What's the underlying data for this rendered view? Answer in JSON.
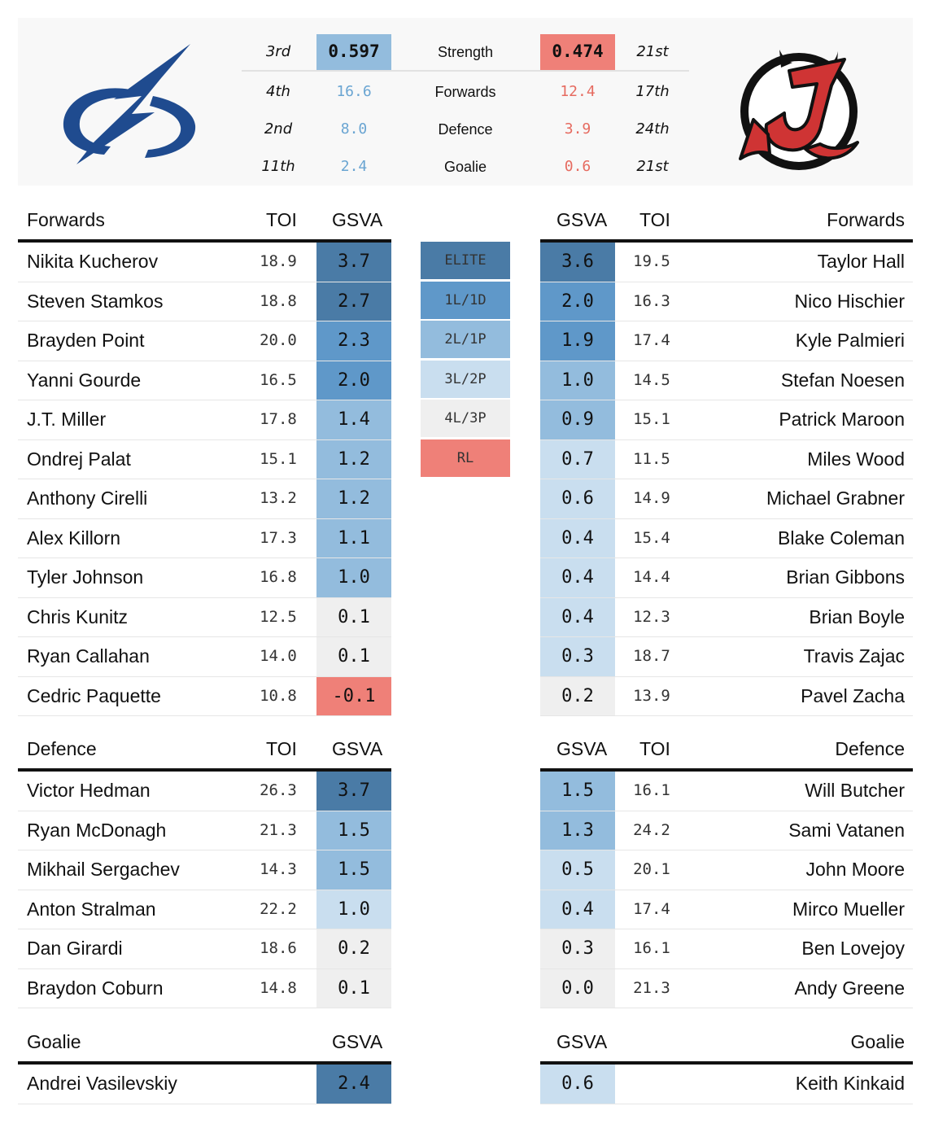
{
  "colors": {
    "elite": "#4a7ba6",
    "tier1": "#5f98c9",
    "tier2": "#93bcdd",
    "tier3": "#c9deef",
    "tier4": "#efefef",
    "rl": "#ef8078",
    "strength_left_bg": "#93bcdd",
    "strength_right_bg": "#ef8078"
  },
  "logos": {
    "left": "tampa-bay-lightning-logo",
    "right": "new-jersey-devils-logo"
  },
  "summary": [
    {
      "label": "Strength",
      "left_rank": "3rd",
      "left_value": "0.597",
      "right_value": "0.474",
      "right_rank": "21st"
    },
    {
      "label": "Forwards",
      "left_rank": "4th",
      "left_value": "16.6",
      "right_value": "12.4",
      "right_rank": "17th"
    },
    {
      "label": "Defence",
      "left_rank": "2nd",
      "left_value": "8.0",
      "right_value": "3.9",
      "right_rank": "24th"
    },
    {
      "label": "Goalie",
      "left_rank": "11th",
      "left_value": "2.4",
      "right_value": "0.6",
      "right_rank": "21st"
    }
  ],
  "legend": [
    {
      "label": "ELITE",
      "tier": "elite"
    },
    {
      "label": "1L/1D",
      "tier": "tier1"
    },
    {
      "label": "2L/1P",
      "tier": "tier2"
    },
    {
      "label": "3L/2P",
      "tier": "tier3"
    },
    {
      "label": "4L/3P",
      "tier": "tier4"
    },
    {
      "label": "RL",
      "tier": "rl"
    }
  ],
  "headers": {
    "forwards": "Forwards",
    "defence": "Defence",
    "goalie": "Goalie",
    "toi": "TOI",
    "gsva": "GSVA"
  },
  "left_team": {
    "forwards": [
      {
        "name": "Nikita Kucherov",
        "toi": "18.9",
        "gsva": "3.7",
        "tier": "elite"
      },
      {
        "name": "Steven Stamkos",
        "toi": "18.8",
        "gsva": "2.7",
        "tier": "elite"
      },
      {
        "name": "Brayden Point",
        "toi": "20.0",
        "gsva": "2.3",
        "tier": "tier1"
      },
      {
        "name": "Yanni Gourde",
        "toi": "16.5",
        "gsva": "2.0",
        "tier": "tier1"
      },
      {
        "name": "J.T. Miller",
        "toi": "17.8",
        "gsva": "1.4",
        "tier": "tier2"
      },
      {
        "name": "Ondrej Palat",
        "toi": "15.1",
        "gsva": "1.2",
        "tier": "tier2"
      },
      {
        "name": "Anthony Cirelli",
        "toi": "13.2",
        "gsva": "1.2",
        "tier": "tier2"
      },
      {
        "name": "Alex Killorn",
        "toi": "17.3",
        "gsva": "1.1",
        "tier": "tier2"
      },
      {
        "name": "Tyler Johnson",
        "toi": "16.8",
        "gsva": "1.0",
        "tier": "tier2"
      },
      {
        "name": "Chris Kunitz",
        "toi": "12.5",
        "gsva": "0.1",
        "tier": "tier4"
      },
      {
        "name": "Ryan Callahan",
        "toi": "14.0",
        "gsva": "0.1",
        "tier": "tier4"
      },
      {
        "name": "Cedric Paquette",
        "toi": "10.8",
        "gsva": "-0.1",
        "tier": "rl"
      }
    ],
    "defence": [
      {
        "name": "Victor Hedman",
        "toi": "26.3",
        "gsva": "3.7",
        "tier": "elite"
      },
      {
        "name": "Ryan McDonagh",
        "toi": "21.3",
        "gsva": "1.5",
        "tier": "tier2"
      },
      {
        "name": "Mikhail Sergachev",
        "toi": "14.3",
        "gsva": "1.5",
        "tier": "tier2"
      },
      {
        "name": "Anton Stralman",
        "toi": "22.2",
        "gsva": "1.0",
        "tier": "tier3"
      },
      {
        "name": "Dan Girardi",
        "toi": "18.6",
        "gsva": "0.2",
        "tier": "tier4"
      },
      {
        "name": "Braydon Coburn",
        "toi": "14.8",
        "gsva": "0.1",
        "tier": "tier4"
      }
    ],
    "goalie": [
      {
        "name": "Andrei Vasilevskiy",
        "toi": "",
        "gsva": "2.4",
        "tier": "elite"
      }
    ]
  },
  "right_team": {
    "forwards": [
      {
        "name": "Taylor Hall",
        "toi": "19.5",
        "gsva": "3.6",
        "tier": "elite"
      },
      {
        "name": "Nico Hischier",
        "toi": "16.3",
        "gsva": "2.0",
        "tier": "tier1"
      },
      {
        "name": "Kyle Palmieri",
        "toi": "17.4",
        "gsva": "1.9",
        "tier": "tier1"
      },
      {
        "name": "Stefan Noesen",
        "toi": "14.5",
        "gsva": "1.0",
        "tier": "tier2"
      },
      {
        "name": "Patrick Maroon",
        "toi": "15.1",
        "gsva": "0.9",
        "tier": "tier2"
      },
      {
        "name": "Miles Wood",
        "toi": "11.5",
        "gsva": "0.7",
        "tier": "tier3"
      },
      {
        "name": "Michael Grabner",
        "toi": "14.9",
        "gsva": "0.6",
        "tier": "tier3"
      },
      {
        "name": "Blake Coleman",
        "toi": "15.4",
        "gsva": "0.4",
        "tier": "tier3"
      },
      {
        "name": "Brian Gibbons",
        "toi": "14.4",
        "gsva": "0.4",
        "tier": "tier3"
      },
      {
        "name": "Brian Boyle",
        "toi": "12.3",
        "gsva": "0.4",
        "tier": "tier3"
      },
      {
        "name": "Travis Zajac",
        "toi": "18.7",
        "gsva": "0.3",
        "tier": "tier3"
      },
      {
        "name": "Pavel Zacha",
        "toi": "13.9",
        "gsva": "0.2",
        "tier": "tier4"
      }
    ],
    "defence": [
      {
        "name": "Will Butcher",
        "toi": "16.1",
        "gsva": "1.5",
        "tier": "tier2"
      },
      {
        "name": "Sami Vatanen",
        "toi": "24.2",
        "gsva": "1.3",
        "tier": "tier2"
      },
      {
        "name": "John Moore",
        "toi": "20.1",
        "gsva": "0.5",
        "tier": "tier3"
      },
      {
        "name": "Mirco Mueller",
        "toi": "17.4",
        "gsva": "0.4",
        "tier": "tier3"
      },
      {
        "name": "Ben Lovejoy",
        "toi": "16.1",
        "gsva": "0.3",
        "tier": "tier4"
      },
      {
        "name": "Andy Greene",
        "toi": "21.3",
        "gsva": "0.0",
        "tier": "tier4"
      }
    ],
    "goalie": [
      {
        "name": "Keith Kinkaid",
        "toi": "",
        "gsva": "0.6",
        "tier": "tier3"
      }
    ]
  }
}
